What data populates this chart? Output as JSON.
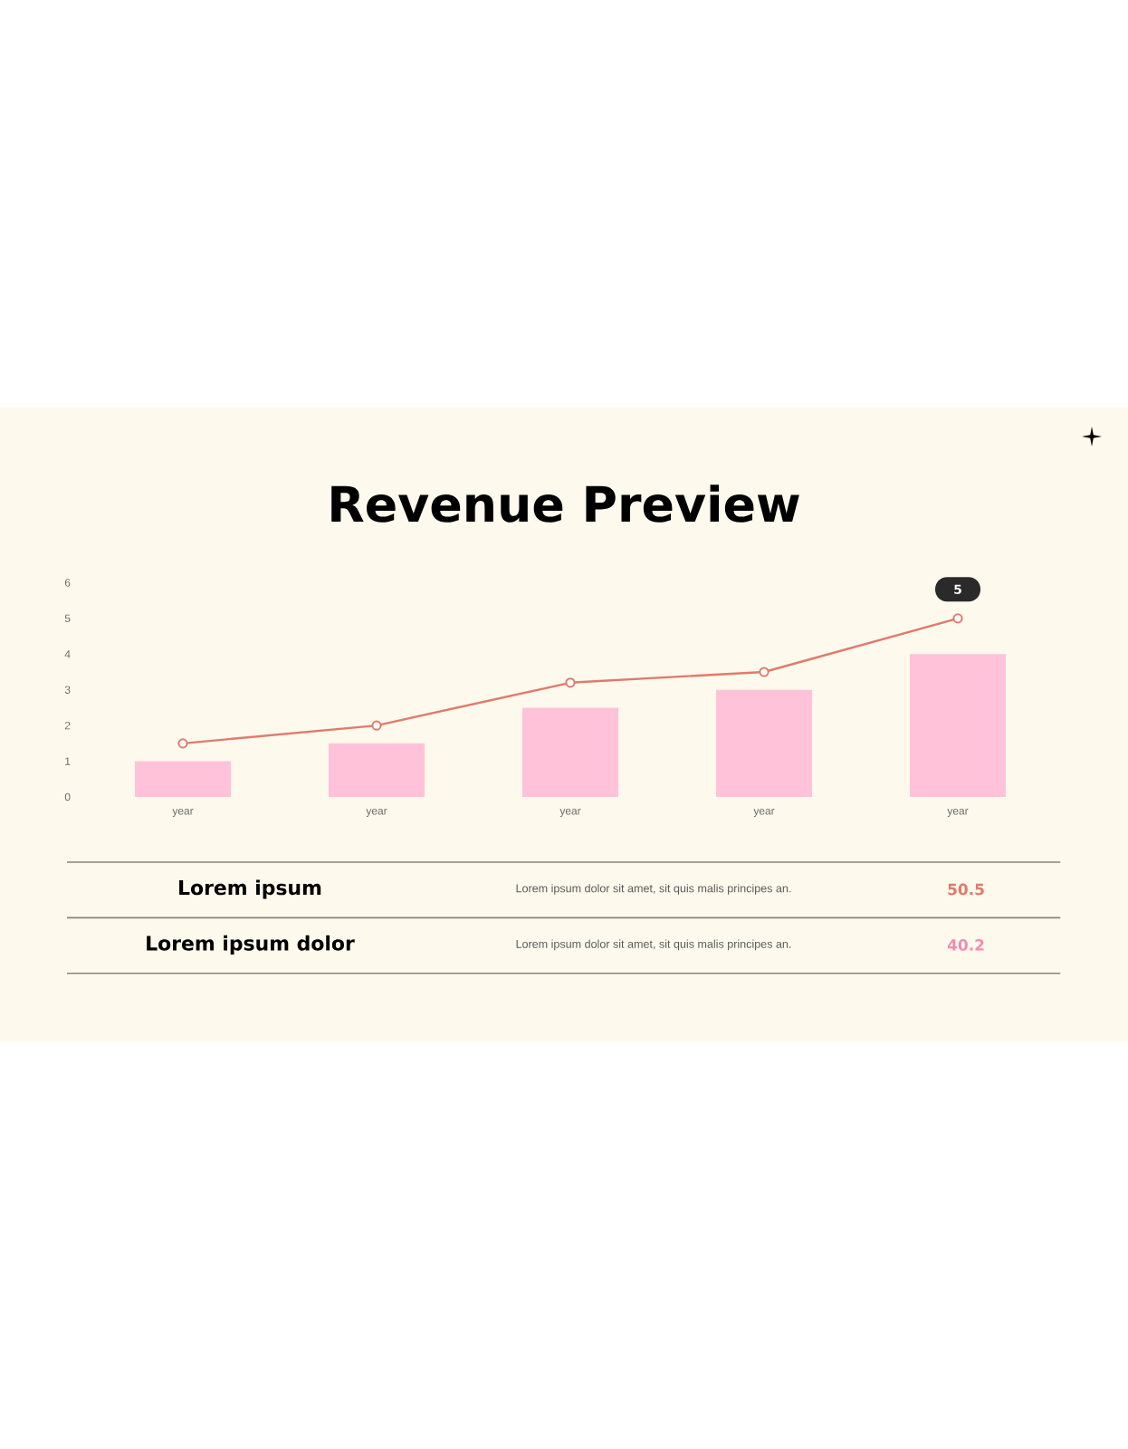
{
  "chart_data": {
    "type": "bar",
    "title": "Revenue Preview",
    "categories": [
      "year",
      "year",
      "year",
      "year",
      "year"
    ],
    "series": [
      {
        "color": "#ffc2d9",
        "values": [
          1,
          1.5,
          2.5,
          3,
          4
        ]
      },
      {
        "type": "line",
        "color": "#e07a6e",
        "values": [
          1.5,
          2,
          3.2,
          3.5,
          5
        ],
        "marker": "circle",
        "line_style": "solid",
        "value_labels": [
          null,
          null,
          null,
          null,
          "5"
        ]
      }
    ],
    "ylim": [
      0,
      6
    ],
    "yticks": [
      0,
      1,
      2,
      3,
      4,
      5,
      6
    ],
    "annotations": [
      "Lorem ipsum",
      "Lorem ipsum dolor sit amet, sit quis malis principes an.",
      "50.5",
      "Lorem ipsum dolor",
      "Lorem ipsum dolor sit amet, sit quis malis principes an.",
      "40.2"
    ]
  }
}
